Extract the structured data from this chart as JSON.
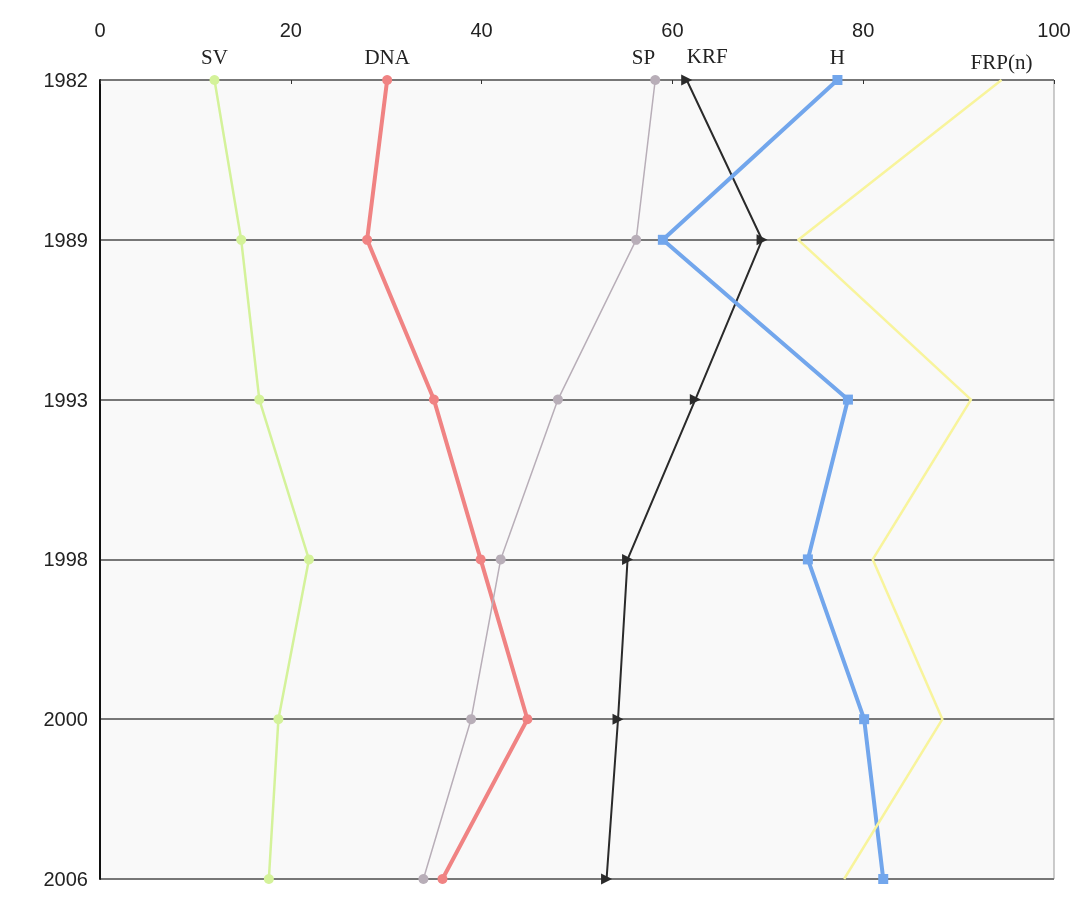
{
  "chart_data": {
    "type": "line",
    "orientation": "horizontal",
    "categories": [
      "1982",
      "1989",
      "1993",
      "1998",
      "2000",
      "2006"
    ],
    "xlim": [
      0,
      100
    ],
    "xticks": [
      0,
      20,
      40,
      60,
      80,
      100
    ],
    "grid": "y",
    "series": [
      {
        "name": "SV",
        "color": "#d4f29a",
        "marker": "circle",
        "values": [
          12,
          14.8,
          16.7,
          21.9,
          18.7,
          17.7
        ]
      },
      {
        "name": "DNA",
        "color": "#f08383",
        "marker": "circle",
        "values": [
          30.1,
          28,
          35,
          39.9,
          44.8,
          35.9
        ]
      },
      {
        "name": "SP",
        "color": "#b8aeb8",
        "marker": "circle",
        "values": [
          58.2,
          56.2,
          48,
          42,
          38.9,
          33.9
        ]
      },
      {
        "name": "KRF",
        "color": "#2a2a2a",
        "marker": "triangle",
        "values": [
          61.5,
          69.4,
          62.4,
          55.3,
          54.3,
          53.1
        ]
      },
      {
        "name": "H",
        "color": "#72a6ec",
        "marker": "square",
        "values": [
          77.3,
          59,
          78.4,
          74.2,
          80.1,
          82.1
        ]
      },
      {
        "name": "FRP(n)",
        "color": "#f8f49c",
        "marker": "none",
        "values": [
          94.5,
          73.2,
          91.3,
          81,
          88.3,
          78
        ]
      }
    ]
  }
}
